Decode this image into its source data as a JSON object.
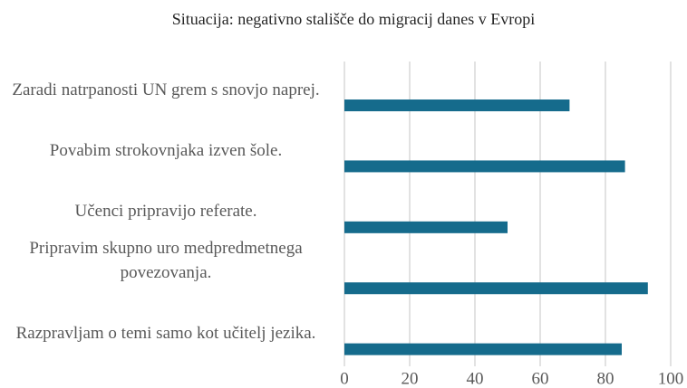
{
  "chart_data": {
    "type": "barh",
    "title": "Situacija: negativno stališče do migracij danes v Evropi",
    "categories": [
      "Zaradi natrpanosti UN grem s snovjo naprej.",
      "Povabim strokovnjaka izven šole.",
      "Učenci pripravijo referate.",
      "Pripravim skupno uro medpredmetnega povezovanja.",
      "Razpravljam o temi samo kot učitelj jezika."
    ],
    "values": [
      69,
      86,
      50,
      93,
      85
    ],
    "color": "#156b8c",
    "xlim": [
      0,
      100
    ],
    "xticks": [
      0,
      20,
      40,
      60,
      80,
      100
    ],
    "grid": true
  }
}
